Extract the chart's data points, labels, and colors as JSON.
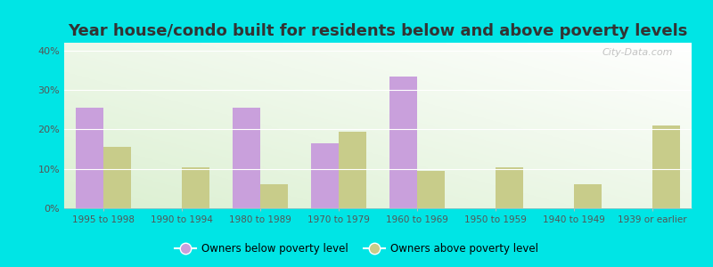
{
  "title": "Year house/condo built for residents below and above poverty levels",
  "categories": [
    "1995 to 1998",
    "1990 to 1994",
    "1980 to 1989",
    "1970 to 1979",
    "1960 to 1969",
    "1950 to 1959",
    "1940 to 1949",
    "1939 or earlier"
  ],
  "below_poverty": [
    25.5,
    0,
    25.5,
    16.5,
    33.5,
    0,
    0,
    0
  ],
  "above_poverty": [
    15.5,
    10.5,
    6.0,
    19.5,
    9.5,
    10.5,
    6.0,
    21.0
  ],
  "below_color": "#c9a0dc",
  "above_color": "#c8cc8a",
  "outer_background": "#00e5e5",
  "ylim": [
    0,
    42
  ],
  "yticks": [
    0,
    10,
    20,
    30,
    40
  ],
  "ytick_labels": [
    "0%",
    "10%",
    "20%",
    "30%",
    "40%"
  ],
  "legend_below": "Owners below poverty level",
  "legend_above": "Owners above poverty level",
  "bar_width": 0.35,
  "title_fontsize": 13,
  "watermark": "City-Data.com"
}
